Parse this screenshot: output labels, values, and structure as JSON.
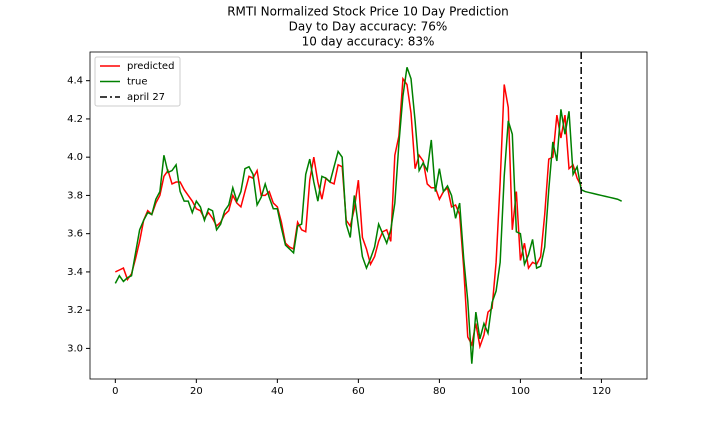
{
  "chart_data": {
    "type": "line",
    "title": [
      "RMTI Normalized Stock Price 10 Day Prediction",
      "Day to Day accuracy: 76%",
      "10 day accuracy: 83%"
    ],
    "x": [
      0,
      1,
      2,
      3,
      4,
      5,
      6,
      7,
      8,
      9,
      10,
      11,
      12,
      13,
      14,
      15,
      16,
      17,
      18,
      19,
      20,
      21,
      22,
      23,
      24,
      25,
      26,
      27,
      28,
      29,
      30,
      31,
      32,
      33,
      34,
      35,
      36,
      37,
      38,
      39,
      40,
      41,
      42,
      43,
      44,
      45,
      46,
      47,
      48,
      49,
      50,
      51,
      52,
      53,
      54,
      55,
      56,
      57,
      58,
      59,
      60,
      61,
      62,
      63,
      64,
      65,
      66,
      67,
      68,
      69,
      70,
      71,
      72,
      73,
      74,
      75,
      76,
      77,
      78,
      79,
      80,
      81,
      82,
      83,
      84,
      85,
      86,
      87,
      88,
      89,
      90,
      91,
      92,
      93,
      94,
      95,
      96,
      97,
      98,
      99,
      100,
      101,
      102,
      103,
      104,
      105,
      106,
      107,
      108,
      109,
      110,
      111,
      112,
      113,
      114,
      115,
      116,
      117,
      118,
      119,
      120,
      121,
      122,
      123,
      124,
      125
    ],
    "series": [
      {
        "name": "predicted",
        "color": "#ff0000",
        "values": [
          3.4,
          3.41,
          3.42,
          3.36,
          3.39,
          3.47,
          3.56,
          3.67,
          3.72,
          3.7,
          3.76,
          3.8,
          3.9,
          3.93,
          3.86,
          3.87,
          3.87,
          3.83,
          3.8,
          3.77,
          3.73,
          3.72,
          3.68,
          3.71,
          3.68,
          3.64,
          3.66,
          3.7,
          3.72,
          3.8,
          3.76,
          3.74,
          3.82,
          3.9,
          3.89,
          3.93,
          3.8,
          3.8,
          3.82,
          3.76,
          3.74,
          3.66,
          3.55,
          3.53,
          3.52,
          3.66,
          3.62,
          3.61,
          3.88,
          4.0,
          3.87,
          3.78,
          3.89,
          3.87,
          3.86,
          3.96,
          3.95,
          3.67,
          3.64,
          3.73,
          3.88,
          3.58,
          3.52,
          3.44,
          3.48,
          3.56,
          3.61,
          3.62,
          3.56,
          4.01,
          4.11,
          4.41,
          4.38,
          4.23,
          3.94,
          4.01,
          3.98,
          3.86,
          3.84,
          3.84,
          3.78,
          3.82,
          3.84,
          3.74,
          3.75,
          3.7,
          3.42,
          3.06,
          3.02,
          3.13,
          3.01,
          3.07,
          3.19,
          3.21,
          3.45,
          3.87,
          4.38,
          4.26,
          3.62,
          3.82,
          3.46,
          3.55,
          3.42,
          3.45,
          3.44,
          3.48,
          3.7,
          3.99,
          4.0,
          4.22,
          4.1,
          4.22,
          3.94,
          3.96,
          3.89,
          3.85,
          null,
          null,
          null,
          null,
          null,
          null,
          null,
          null,
          null,
          null
        ]
      },
      {
        "name": "true",
        "color": "#008000",
        "values": [
          3.34,
          3.38,
          3.35,
          3.37,
          3.38,
          3.5,
          3.62,
          3.67,
          3.71,
          3.7,
          3.78,
          3.82,
          4.01,
          3.92,
          3.93,
          3.96,
          3.82,
          3.77,
          3.77,
          3.71,
          3.77,
          3.74,
          3.67,
          3.73,
          3.72,
          3.62,
          3.65,
          3.72,
          3.75,
          3.84,
          3.77,
          3.82,
          3.94,
          3.95,
          3.91,
          3.75,
          3.79,
          3.86,
          3.79,
          3.73,
          3.73,
          3.63,
          3.54,
          3.52,
          3.5,
          3.64,
          3.65,
          3.91,
          3.99,
          3.87,
          3.77,
          3.9,
          3.89,
          3.87,
          3.95,
          4.03,
          4.0,
          3.65,
          3.58,
          3.8,
          3.64,
          3.48,
          3.42,
          3.47,
          3.53,
          3.65,
          3.6,
          3.55,
          3.62,
          3.76,
          4.07,
          4.32,
          4.47,
          4.41,
          4.19,
          3.93,
          3.97,
          3.93,
          4.09,
          3.82,
          3.94,
          3.82,
          3.85,
          3.8,
          3.68,
          3.76,
          3.47,
          3.25,
          2.92,
          3.19,
          3.05,
          3.13,
          3.08,
          3.24,
          3.3,
          3.45,
          3.9,
          4.19,
          4.12,
          3.61,
          3.6,
          3.44,
          3.49,
          3.57,
          3.42,
          3.43,
          3.53,
          3.83,
          4.08,
          3.98,
          4.25,
          4.12,
          4.24,
          3.91,
          3.95,
          3.83,
          3.82,
          3.815,
          3.81,
          3.805,
          3.8,
          3.795,
          3.79,
          3.785,
          3.78,
          3.77
        ]
      }
    ],
    "vline": {
      "x": 115,
      "label": "april 27",
      "color": "#000000"
    },
    "xlim": [
      -6.25,
      131.25
    ],
    "ylim": [
      2.84,
      4.55
    ],
    "xticks": [
      0,
      20,
      40,
      60,
      80,
      100,
      120
    ],
    "yticks": [
      {
        "value": 3,
        "label": "3.0"
      },
      3.2,
      3.4,
      3.6,
      3.8,
      {
        "value": 4,
        "label": "4.0"
      },
      4.2,
      4.4
    ],
    "legend": "upper left"
  }
}
